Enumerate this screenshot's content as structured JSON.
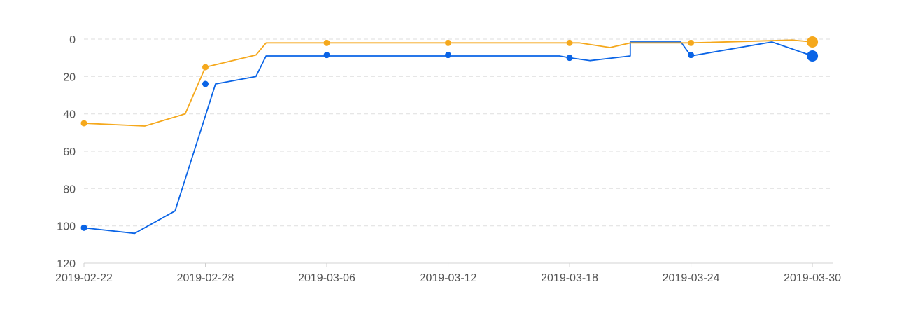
{
  "chart_data": {
    "type": "line",
    "title": "",
    "xlabel": "",
    "ylabel": "",
    "y_inverted": true,
    "ylim": [
      0,
      120
    ],
    "y_ticks": [
      "0",
      "20",
      "40",
      "60",
      "80",
      "100",
      "120"
    ],
    "xlim": [
      "2019-02-22",
      "2019-03-31"
    ],
    "x_ticks": [
      "2019-02-22",
      "2019-02-28",
      "2019-03-06",
      "2019-03-12",
      "2019-03-18",
      "2019-03-24",
      "2019-03-30"
    ],
    "grid": true,
    "legend": "none",
    "series": [
      {
        "color": "#0a64e6",
        "line": [
          [
            "2019-02-22",
            101
          ],
          [
            "2019-02-24.5",
            104
          ],
          [
            "2019-02-26.5",
            92
          ],
          [
            "2019-02-28.5",
            24
          ],
          [
            "2019-03-01",
            23
          ],
          [
            "2019-03-02.5",
            20
          ],
          [
            "2019-03-03",
            9
          ],
          [
            "2019-03-06",
            9
          ],
          [
            "2019-03-12",
            9
          ],
          [
            "2019-03-17.5",
            9
          ],
          [
            "2019-03-18",
            10
          ],
          [
            "2019-03-19",
            11.5
          ],
          [
            "2019-03-21",
            9
          ],
          [
            "2019-03-21",
            1.5
          ],
          [
            "2019-03-23.5",
            1.5
          ],
          [
            "2019-03-24",
            9
          ],
          [
            "2019-03-28",
            1.5
          ],
          [
            "2019-03-30",
            9
          ]
        ],
        "markers": [
          [
            "2019-02-22",
            101
          ],
          [
            "2019-02-28",
            24
          ],
          [
            "2019-03-06",
            8.5
          ],
          [
            "2019-03-12",
            8.5
          ],
          [
            "2019-03-18",
            10
          ],
          [
            "2019-03-24",
            8.5
          ],
          [
            "2019-03-30",
            9
          ]
        ]
      },
      {
        "color": "#f5a81c",
        "line": [
          [
            "2019-02-22",
            45
          ],
          [
            "2019-02-25",
            46.5
          ],
          [
            "2019-02-27",
            40
          ],
          [
            "2019-02-28",
            15
          ],
          [
            "2019-03-02.5",
            8.5
          ],
          [
            "2019-03-03",
            2
          ],
          [
            "2019-03-06",
            2
          ],
          [
            "2019-03-12",
            2
          ],
          [
            "2019-03-18",
            2
          ],
          [
            "2019-03-18.5",
            2
          ],
          [
            "2019-03-20",
            4.5
          ],
          [
            "2019-03-21",
            2
          ],
          [
            "2019-03-24",
            2
          ],
          [
            "2019-03-29",
            0.5
          ],
          [
            "2019-03-30",
            1.5
          ]
        ],
        "markers": [
          [
            "2019-02-22",
            45
          ],
          [
            "2019-02-28",
            15
          ],
          [
            "2019-03-06",
            2
          ],
          [
            "2019-03-12",
            2
          ],
          [
            "2019-03-18",
            2
          ],
          [
            "2019-03-24",
            2
          ],
          [
            "2019-03-30",
            1.5
          ]
        ]
      }
    ]
  }
}
